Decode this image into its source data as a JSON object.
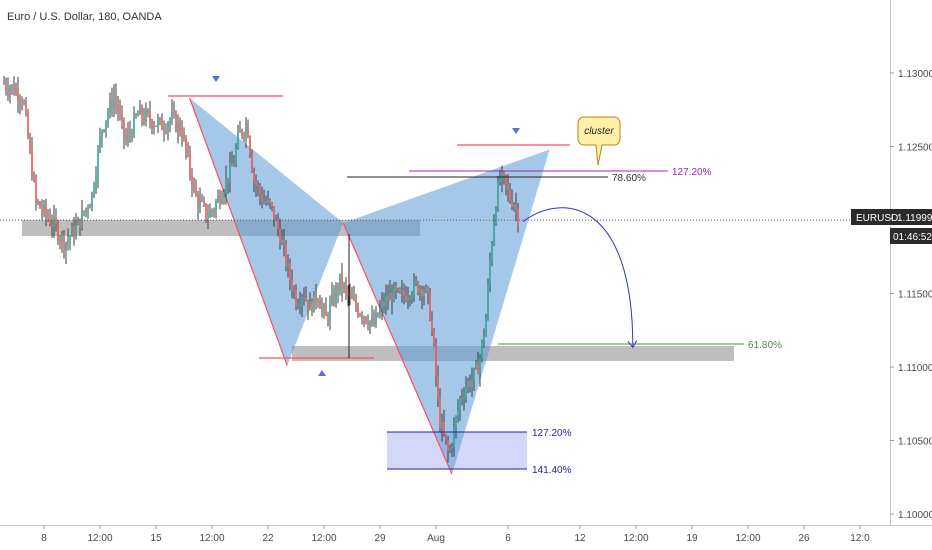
{
  "header": {
    "title": "Euro / U.S. Dollar, 180, OANDA"
  },
  "symbol": {
    "label": "EURUSD",
    "price": "1.11999",
    "countdown": "01:46:52"
  },
  "callout": {
    "text": "cluster"
  },
  "fib_labels": {
    "f786": "78.60%",
    "f1272_top": "127.20%",
    "f618": "61.80%",
    "f1272_bottom": "127.20%",
    "f1414": "141.40%"
  },
  "colors": {
    "bull": "#26a69a",
    "bear": "#ef5350",
    "candle": "#3d3d3d",
    "pattern_fill": "#5b9bd5",
    "red_line": "#ff4d5e",
    "triangle": "#5a6fd6",
    "arrow": "#2f35c8",
    "zone": "#a8a8a8",
    "purple": "#9c27b0",
    "green": "#4c8c4a",
    "box": "#2222aa"
  },
  "icons": [
    "triangle-down-icon",
    "triangle-up-icon",
    "curved-arrow-icon"
  ],
  "chart_data": {
    "type": "candlestick",
    "title": "Euro / U.S. Dollar, 180, OANDA",
    "ylim": [
      1.0975,
      1.1325
    ],
    "y_ticks": [
      "1.13000",
      "1.12500",
      "1.12000",
      "1.11500",
      "1.11000",
      "1.10500",
      "1.10000"
    ],
    "y_tick_values": [
      1.13,
      1.125,
      1.12,
      1.115,
      1.11,
      1.105,
      1.1
    ],
    "x_ticks": [
      "8",
      "12:00",
      "15",
      "12:00",
      "22",
      "12:00",
      "29",
      "Aug",
      "6",
      "12",
      "12:00",
      "19",
      "12:00",
      "26",
      "12:0"
    ],
    "x_tick_days": [
      8,
      11.5,
      15,
      18.5,
      22,
      25.5,
      29,
      32.5,
      37,
      41.5,
      45,
      48.5,
      52,
      55.5,
      59
    ],
    "x_range": [
      5.5,
      60
    ],
    "current_price": 1.11999,
    "path": [
      [
        5.5,
        1.1293
      ],
      [
        6.3,
        1.1288
      ],
      [
        6.7,
        1.1282
      ],
      [
        7.5,
        1.1212
      ],
      [
        8.6,
        1.1197
      ],
      [
        9.3,
        1.1184
      ],
      [
        10.2,
        1.1198
      ],
      [
        11.0,
        1.1217
      ],
      [
        11.6,
        1.1262
      ],
      [
        12.4,
        1.1285
      ],
      [
        13.1,
        1.1253
      ],
      [
        13.9,
        1.1272
      ],
      [
        14.7,
        1.1268
      ],
      [
        15.3,
        1.1264
      ],
      [
        16.0,
        1.1269
      ],
      [
        16.6,
        1.1261
      ],
      [
        17.0,
        1.124
      ],
      [
        17.5,
        1.1215
      ],
      [
        18.2,
        1.1203
      ],
      [
        18.6,
        1.1208
      ],
      [
        19.2,
        1.1222
      ],
      [
        19.8,
        1.1237
      ],
      [
        20.2,
        1.1258
      ],
      [
        20.7,
        1.1266
      ],
      [
        21.1,
        1.1228
      ],
      [
        21.6,
        1.1215
      ],
      [
        22.2,
        1.1208
      ],
      [
        22.8,
        1.1188
      ],
      [
        23.3,
        1.1163
      ],
      [
        23.8,
        1.1145
      ],
      [
        24.2,
        1.1152
      ],
      [
        24.6,
        1.114
      ],
      [
        25.1,
        1.115
      ],
      [
        25.6,
        1.1132
      ],
      [
        26.1,
        1.1147
      ],
      [
        26.5,
        1.1158
      ],
      [
        27.0,
        1.1148
      ],
      [
        27.4,
        1.1142
      ],
      [
        28.0,
        1.1136
      ],
      [
        28.6,
        1.1128
      ],
      [
        29.2,
        1.1143
      ],
      [
        29.8,
        1.115
      ],
      [
        30.3,
        1.1147
      ],
      [
        30.9,
        1.1153
      ],
      [
        31.4,
        1.1155
      ],
      [
        31.8,
        1.1153
      ],
      [
        32.1,
        1.114
      ],
      [
        32.4,
        1.1108
      ],
      [
        32.7,
        1.1065
      ],
      [
        33.0,
        1.1052
      ],
      [
        33.3,
        1.104
      ],
      [
        33.6,
        1.1055
      ],
      [
        34.0,
        1.1078
      ],
      [
        34.4,
        1.1088
      ],
      [
        34.8,
        1.1092
      ],
      [
        35.2,
        1.1103
      ],
      [
        35.6,
        1.113
      ],
      [
        35.9,
        1.1175
      ],
      [
        36.2,
        1.121
      ],
      [
        36.5,
        1.1228
      ],
      [
        36.8,
        1.1225
      ],
      [
        37.1,
        1.1215
      ],
      [
        37.4,
        1.1212
      ],
      [
        37.7,
        1.1199
      ]
    ],
    "fib_levels": [
      {
        "label": "78.60%",
        "value": 1.12272
      },
      {
        "label": "127.20%",
        "value": 1.12313
      },
      {
        "label": "61.80%",
        "value": 1.11125
      },
      {
        "label": "127.20%",
        "value": 1.10523
      },
      {
        "label": "141.40%",
        "value": 1.10264
      }
    ],
    "pattern": {
      "X": [
        17.1,
        1.1283
      ],
      "A": [
        23.2,
        1.1101
      ],
      "B": [
        26.7,
        1.1198
      ],
      "C": [
        33.5,
        1.1027
      ],
      "D": [
        39.6,
        1.1248
      ]
    },
    "projection": {
      "from": [
        37.7,
        1.1199
      ],
      "to": [
        44.8,
        1.1112
      ]
    },
    "grid": false,
    "legend": "none"
  }
}
